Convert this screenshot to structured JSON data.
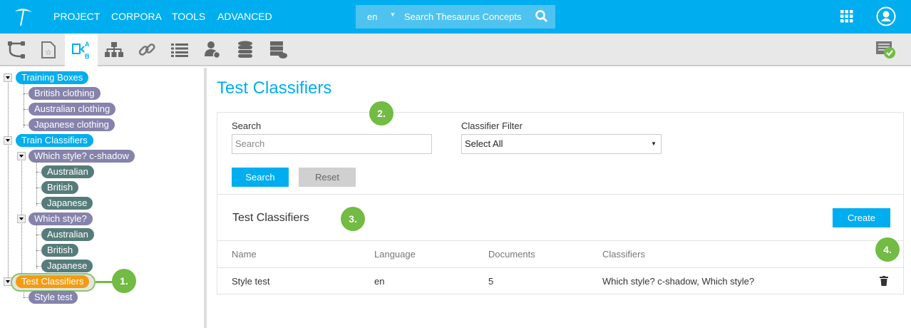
{
  "header": {
    "menu": [
      "PROJECT",
      "CORPORA",
      "TOOLS",
      "ADVANCED"
    ],
    "search": {
      "lang": "en",
      "placeholder": "Search Thesaurus Concepts"
    }
  },
  "toolbar": {
    "icons": [
      "workflow-icon",
      "document-star-icon",
      "classifier-icon",
      "hierarchy-icon",
      "link-icon",
      "list-icon",
      "user-settings-icon",
      "database-icon",
      "server-cloud-icon"
    ],
    "active": "classifier-icon",
    "right_icon": "task-check-icon"
  },
  "tree": {
    "items": [
      {
        "label": "Training Boxes",
        "color": "#00aeef"
      },
      {
        "label": "British clothing",
        "color": "#8583ab"
      },
      {
        "label": "Australian clothing",
        "color": "#8583ab"
      },
      {
        "label": "Japanese clothing",
        "color": "#8583ab"
      },
      {
        "label": "Train Classifiers",
        "color": "#00aeef"
      },
      {
        "label": "Which style? c-shadow",
        "color": "#8583ab"
      },
      {
        "label": "Australian",
        "color": "#567c7a"
      },
      {
        "label": "British",
        "color": "#567c7a"
      },
      {
        "label": "Japanese",
        "color": "#567c7a"
      },
      {
        "label": "Which style?",
        "color": "#8583ab"
      },
      {
        "label": "Australian",
        "color": "#567c7a"
      },
      {
        "label": "British",
        "color": "#567c7a"
      },
      {
        "label": "Japanese",
        "color": "#567c7a"
      },
      {
        "label": "Test Classifiers",
        "color": "#f39c12"
      },
      {
        "label": "Style test",
        "color": "#8583ab"
      }
    ]
  },
  "badges": [
    "1.",
    "2.",
    "3.",
    "4."
  ],
  "main": {
    "title": "Test Classifiers",
    "search": {
      "label": "Search",
      "placeholder": "Search"
    },
    "filter": {
      "label": "Classifier Filter",
      "value": "Select All"
    },
    "search_button": "Search",
    "reset_button": "Reset",
    "list_title": "Test Classifiers",
    "create_button": "Create",
    "columns": [
      "Name",
      "Language",
      "Documents",
      "Classifiers"
    ],
    "rows": [
      {
        "name": "Style test",
        "language": "en",
        "documents": "5",
        "classifiers": "Which style? c-shadow, Which style?",
        "action": "trash-icon"
      }
    ]
  }
}
